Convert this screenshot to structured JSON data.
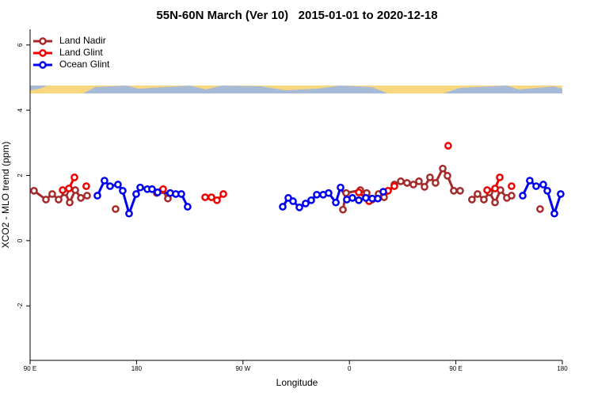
{
  "chart_data": {
    "type": "line",
    "title": "55N-60N March (Ver 10)   2015-01-01 to 2020-12-18",
    "xlabel": "Longitude",
    "ylabel": "XCO2 - MLO trend (ppm)",
    "xlim": [
      90,
      540
    ],
    "ylim": [
      -3.67,
      6.48
    ],
    "xticks": [
      {
        "value": 90,
        "label": "90 E"
      },
      180,
      {
        "value": 270,
        "label": "90 W"
      },
      {
        "value": 360,
        "label": "0"
      },
      {
        "value": 450,
        "label": "90 E"
      },
      {
        "value": 540,
        "label": "180"
      }
    ],
    "yticks": [
      -2,
      0,
      2,
      4,
      6
    ],
    "grid": false,
    "legend": "topleft",
    "series": [
      {
        "name": "Land Nadir",
        "color": "#a52a2a",
        "x": [
          93.3,
          103.4,
          108.7,
          114.1,
          119.5,
          123.5,
          128.2,
          132.9,
          138.2,
          null,
          162.3,
          null,
          197.1,
          201.8,
          206.5,
          null,
          354.5,
          357.2,
          369.2,
          374.6,
          379.3,
          384.6,
          389.3,
          398,
          403.4,
          408.7,
          414.1,
          418.8,
          423.5,
          428.1,
          432.8,
          438.9,
          442.9,
          448.2,
          453.6,
          null,
          463.6,
          468.3,
          473.7,
          478.4,
          483.1,
          487.7,
          493.1,
          497.1,
          null,
          521.2
        ],
        "values": [
          1.53,
          1.26,
          1.43,
          1.26,
          1.48,
          1.17,
          1.55,
          1.31,
          1.38,
          null,
          0.97,
          null,
          1.46,
          1.55,
          1.29,
          null,
          0.95,
          1.46,
          1.55,
          1.46,
          1.26,
          1.43,
          1.33,
          1.72,
          1.82,
          1.77,
          1.72,
          1.82,
          1.65,
          1.94,
          1.77,
          2.21,
          1.99,
          1.53,
          1.53,
          null,
          1.26,
          1.43,
          1.26,
          1.48,
          1.17,
          1.55,
          1.31,
          1.38,
          null,
          0.97
        ]
      },
      {
        "name": "Land Glint",
        "color": "#ee0000",
        "x": [
          117.5,
          122.8,
          127.5,
          null,
          137.5,
          null,
          202.5,
          null,
          238,
          243.3,
          248,
          253.4,
          null,
          367.9,
          376.6,
          null,
          392.7,
          398,
          null,
          443.5,
          null,
          476.4,
          483.1,
          487.1,
          null,
          497.1
        ],
        "values": [
          1.55,
          1.6,
          1.94,
          null,
          1.67,
          null,
          1.58,
          null,
          1.33,
          1.33,
          1.24,
          1.43,
          null,
          1.48,
          1.21,
          null,
          1.53,
          1.67,
          null,
          2.91,
          null,
          1.55,
          1.6,
          1.94,
          null,
          1.67
        ]
      },
      {
        "name": "Ocean Glint",
        "color": "#0000ee",
        "x": [
          146.9,
          152.9,
          157.6,
          164.3,
          168.3,
          173.7,
          179.7,
          183.1,
          189.1,
          193.1,
          197.8,
          208.5,
          213.2,
          217.9,
          223.2,
          null,
          303.6,
          308.3,
          312.3,
          317.7,
          323,
          327.7,
          332.4,
          337.8,
          342.4,
          348.5,
          352.5,
          357.8,
          362.5,
          367.9,
          373.9,
          379.3,
          384,
          388.6,
          null,
          506.5,
          512.5,
          517.9,
          523.9,
          527.3,
          533.3,
          538.6
        ],
        "values": [
          1.38,
          1.84,
          1.67,
          1.72,
          1.53,
          0.83,
          1.43,
          1.63,
          1.58,
          1.58,
          1.48,
          1.46,
          1.43,
          1.43,
          1.04,
          null,
          1.04,
          1.31,
          1.21,
          1.02,
          1.14,
          1.24,
          1.41,
          1.41,
          1.46,
          1.17,
          1.63,
          1.26,
          1.31,
          1.24,
          1.31,
          1.29,
          1.29,
          1.5,
          null,
          1.38,
          1.84,
          1.67,
          1.72,
          1.53,
          0.83,
          1.43
        ]
      }
    ]
  }
}
